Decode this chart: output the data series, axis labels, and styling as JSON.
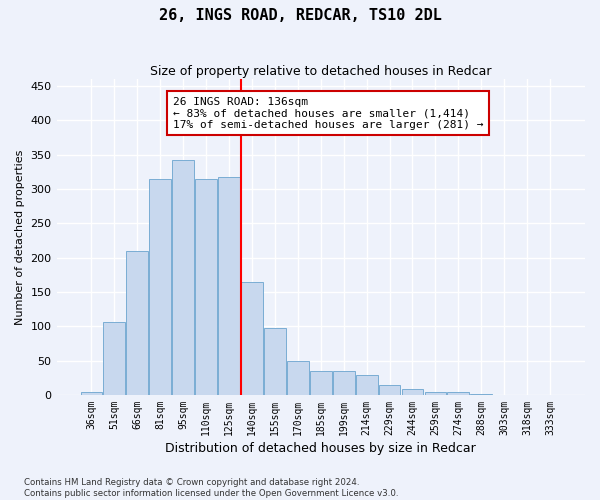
{
  "title": "26, INGS ROAD, REDCAR, TS10 2DL",
  "subtitle": "Size of property relative to detached houses in Redcar",
  "xlabel": "Distribution of detached houses by size in Redcar",
  "ylabel": "Number of detached properties",
  "categories": [
    "36sqm",
    "51sqm",
    "66sqm",
    "81sqm",
    "95sqm",
    "110sqm",
    "125sqm",
    "140sqm",
    "155sqm",
    "170sqm",
    "185sqm",
    "199sqm",
    "214sqm",
    "229sqm",
    "244sqm",
    "259sqm",
    "274sqm",
    "288sqm",
    "303sqm",
    "318sqm",
    "333sqm"
  ],
  "values": [
    5,
    106,
    210,
    315,
    342,
    315,
    318,
    165,
    97,
    50,
    35,
    35,
    29,
    15,
    8,
    5,
    5,
    1,
    0,
    0,
    0
  ],
  "bar_color": "#c8d8ee",
  "bar_edge_color": "#7aadd4",
  "vline_color": "red",
  "annotation_text": "26 INGS ROAD: 136sqm\n← 83% of detached houses are smaller (1,414)\n17% of semi-detached houses are larger (281) →",
  "annotation_box_color": "white",
  "annotation_box_edge": "#cc0000",
  "ylim": [
    0,
    460
  ],
  "yticks": [
    0,
    50,
    100,
    150,
    200,
    250,
    300,
    350,
    400,
    450
  ],
  "footer_line1": "Contains HM Land Registry data © Crown copyright and database right 2024.",
  "footer_line2": "Contains public sector information licensed under the Open Government Licence v3.0.",
  "bg_color": "#eef2fb",
  "plot_bg_color": "#eef2fb",
  "grid_color": "#ffffff",
  "title_fontsize": 11,
  "subtitle_fontsize": 9,
  "ylabel_fontsize": 8,
  "xlabel_fontsize": 9,
  "annot_fontsize": 8,
  "tick_fontsize": 7
}
